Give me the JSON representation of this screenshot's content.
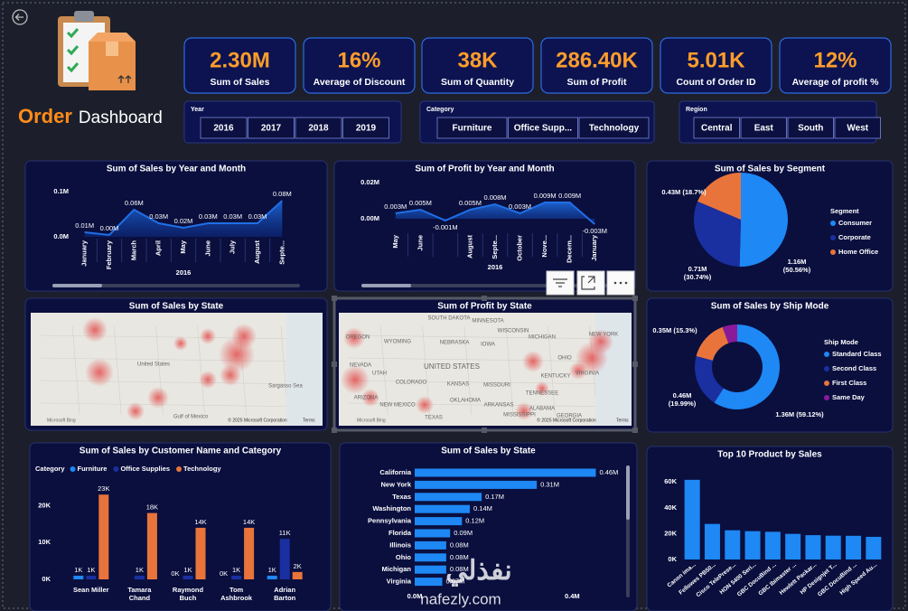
{
  "header": {
    "title": "Order",
    "subtitle": "Dashboard"
  },
  "kpis": [
    {
      "value": "2.30M",
      "label": "Sum of Sales"
    },
    {
      "value": "16%",
      "label": "Average of Discount"
    },
    {
      "value": "38K",
      "label": "Sum of Quantity"
    },
    {
      "value": "286.40K",
      "label": "Sum of Profit"
    },
    {
      "value": "5.01K",
      "label": "Count of Order ID"
    },
    {
      "value": "12%",
      "label": "Average of profit %"
    }
  ],
  "slicers": [
    {
      "title": "Year",
      "items": [
        "2016",
        "2017",
        "2018",
        "2019"
      ]
    },
    {
      "title": "Category",
      "items": [
        "Furniture",
        "Office Supp...",
        "Technology"
      ]
    },
    {
      "title": "Region",
      "items": [
        "Central",
        "East",
        "South",
        "West"
      ]
    }
  ],
  "chart_data": [
    {
      "type": "area",
      "title": "Sum of Sales by Year and Month",
      "categories": [
        "January",
        "February",
        "March",
        "April",
        "May",
        "June",
        "July",
        "August",
        "Septe..."
      ],
      "values": [
        0.01,
        0.004,
        0.06,
        0.03,
        0.02,
        0.03,
        0.03,
        0.03,
        0.08
      ],
      "value_labels": [
        "0.01M",
        "0.00M",
        "0.06M",
        "0.03M",
        "0.02M",
        "0.03M",
        "0.03M",
        "0.03M",
        "0.08M"
      ],
      "x_group_label": "2016",
      "color": "#1f6fe6",
      "ylim": [
        0,
        0.1
      ],
      "yticks": [
        {
          "value": 0,
          "label": "0.0M"
        },
        {
          "value": 0.1,
          "label": "0.1M"
        }
      ],
      "grid": false
    },
    {
      "type": "area",
      "title": "Sum of Profit by Year and Month",
      "categories": [
        "May",
        "June",
        null,
        "August",
        "Septe...",
        "October",
        "Nove...",
        "Decem...",
        "January"
      ],
      "values": [
        0.003,
        0.005,
        -0.001,
        0.005,
        0.008,
        0.003,
        0.009,
        0.009,
        -0.003
      ],
      "value_labels": [
        "0.003M",
        "0.005M",
        "-0.001M",
        "0.005M",
        "0.008M",
        "0.003M",
        "0.009M",
        "0.009M",
        "-0.003M"
      ],
      "x_group_label": "2016",
      "color": "#1f6fe6",
      "ylim": [
        -0.007,
        0.022
      ],
      "yticks": [
        {
          "value": 0,
          "label": "0.00M"
        },
        {
          "value": 0.02,
          "label": "0.02M"
        }
      ],
      "grid": false
    },
    {
      "type": "pie",
      "title": "Sum of Sales by Segment",
      "legend_title": "Segment",
      "categories": [
        "Consumer",
        "Corporate",
        "Home Office"
      ],
      "values": [
        1.16,
        0.71,
        0.43
      ],
      "value_labels": [
        "1.16M (50.56%)",
        "0.71M (30.74%)",
        "0.43M (18.7%)"
      ],
      "colors": [
        "#1e88f5",
        "#1a2fa0",
        "#e8743b"
      ]
    },
    {
      "type": "donut",
      "title": "Sum of Sales by Ship Mode",
      "legend_title": "Ship Mode",
      "categories": [
        "Standard Class",
        "Second Class",
        "First Class",
        "Same Day"
      ],
      "values": [
        1.36,
        0.46,
        0.35,
        0.13
      ],
      "value_labels": [
        "1.36M (59.12%)",
        "0.46M (19.99%)",
        "0.35M (15.3%)",
        null
      ],
      "colors": [
        "#1e88f5",
        "#1a2fa0",
        "#e8743b",
        "#8b1a9a"
      ]
    },
    {
      "type": "map",
      "title": "Sum of Sales by State",
      "labels": [
        "United States",
        "Sargasso Sea",
        "Gulf of Mexico"
      ],
      "provider": "Microsoft Bing",
      "attribution": "© 2025 Microsoft Corporation",
      "terms": "Terms"
    },
    {
      "type": "map",
      "title": "Sum of Profit by State",
      "labels": [
        "UNITED STATES",
        "OREGON",
        "WYOMING",
        "NEBRASKA",
        "IOWA",
        "NEVADA",
        "UTAH",
        "COLORADO",
        "KANSAS",
        "MISSOURI",
        "OKLAHOMA",
        "ARKANSAS",
        "TENNESSEE",
        "MISSISSIPPI",
        "ALABAMA",
        "GEORGIA",
        "TEXAS",
        "NEW MEXICO",
        "ARIZONA",
        "KENTUCKY",
        "VIRGINIA",
        "MICHIGAN",
        "SOUTH DAKOTA",
        "MINNESOTA",
        "WISCONSIN",
        "OHIO",
        "NEW YORK"
      ],
      "provider": "Microsoft Bing",
      "attribution": "© 2025 Microsoft Corporation",
      "terms": "Terms"
    },
    {
      "type": "grouped_bar",
      "title": "Sum of Sales by Customer Name and Category",
      "legend_title": "Category",
      "categories": [
        "Sean Miller",
        "Tamara Chand",
        "Raymond Buch",
        "Tom Ashbrook",
        "Adrian Barton"
      ],
      "series": [
        {
          "name": "Furniture",
          "color": "#1e88f5",
          "values": [
            1,
            null,
            0,
            0,
            1
          ],
          "value_labels": [
            "1K",
            null,
            "0K",
            "0K",
            "1K"
          ]
        },
        {
          "name": "Office Supplies",
          "color": "#1a2fa0",
          "values": [
            1,
            1,
            1,
            1,
            11
          ],
          "value_labels": [
            "1K",
            "1K",
            "1K",
            "1K",
            "11K"
          ]
        },
        {
          "name": "Technology",
          "color": "#e8743b",
          "values": [
            23,
            18,
            14,
            14,
            2
          ],
          "value_labels": [
            "23K",
            "18K",
            "14K",
            "14K",
            "2K"
          ]
        }
      ],
      "ylim": [
        0,
        26
      ],
      "yticks": [
        {
          "value": 0,
          "label": "0K"
        },
        {
          "value": 10,
          "label": "10K"
        },
        {
          "value": 20,
          "label": "20K"
        }
      ],
      "grid": false
    },
    {
      "type": "hbar",
      "title": "Sum of Sales by State",
      "color": "#1e88f5",
      "categories": [
        "California",
        "New York",
        "Texas",
        "Washington",
        "Pennsylvania",
        "Florida",
        "Illinois",
        "Ohio",
        "Michigan",
        "Virginia"
      ],
      "values": [
        0.46,
        0.31,
        0.17,
        0.14,
        0.12,
        0.09,
        0.08,
        0.08,
        0.08,
        0.07
      ],
      "value_labels": [
        "0.46M",
        "0.31M",
        "0.17M",
        "0.14M",
        "0.12M",
        "0.09M",
        "0.08M",
        "0.08M",
        "0.08M",
        "0.07M"
      ],
      "xlim": [
        0,
        0.53
      ],
      "xticks": [
        {
          "value": 0,
          "label": "0.0M"
        },
        {
          "value": 0.4,
          "label": "0.4M"
        }
      ],
      "grid": false
    },
    {
      "type": "bar",
      "title": "Top 10 Product by Sales",
      "color": "#1e88f5",
      "categories": [
        "Canon ima...",
        "Fellowes PB50...",
        "Cisco TelePrese...",
        "HON 5400 Seri...",
        "GBC DocuBind ...",
        "GBC Ibimaster ...",
        "Hewlett Packar...",
        "HP Designjet T...",
        "GBC DocuBind ...",
        "High Speed Au..."
      ],
      "values": [
        61.6,
        27.5,
        22.6,
        21.9,
        21.4,
        19.8,
        18.8,
        18.4,
        18.3,
        17.5
      ],
      "ylim": [
        0,
        65
      ],
      "yticks": [
        {
          "value": 0,
          "label": "0K"
        },
        {
          "value": 20,
          "label": "20K"
        },
        {
          "value": 40,
          "label": "40K"
        },
        {
          "value": 60,
          "label": "60K"
        }
      ],
      "grid": false
    }
  ],
  "watermark": {
    "brand": "نفذلي",
    "url": "nafezly.com"
  }
}
